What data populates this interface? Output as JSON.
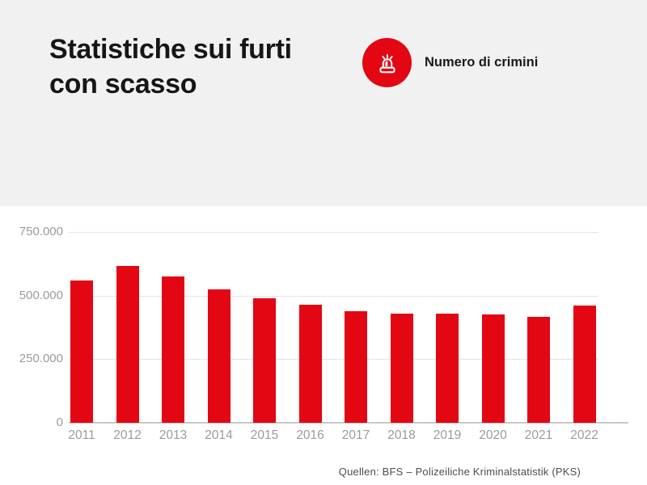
{
  "header": {
    "title_line1": "Statistiche sui furti",
    "title_line2": "con scasso"
  },
  "legend": {
    "icon": "siren-icon",
    "icon_color": "#e30613",
    "label": "Numero di crimini"
  },
  "chart_data": {
    "type": "bar",
    "title": "Statistiche sui furti con scasso",
    "series_label": "Numero di crimini",
    "categories": [
      "2011",
      "2012",
      "2013",
      "2014",
      "2015",
      "2016",
      "2017",
      "2018",
      "2019",
      "2020",
      "2021",
      "2022"
    ],
    "values": [
      560000,
      615000,
      575000,
      525000,
      490000,
      465000,
      440000,
      430000,
      430000,
      425000,
      415000,
      460000
    ],
    "bar_color": "#e30613",
    "xlabel": "",
    "ylabel": "",
    "ylim": [
      0,
      750000
    ],
    "yticks": {
      "values": [
        0,
        250000,
        500000,
        750000
      ],
      "labels": [
        "0",
        "250.000",
        "500.000",
        "750.000"
      ]
    },
    "grid": true,
    "legend_position": "top-right"
  },
  "footer": {
    "source": "Quellen: BFS – Polizeiliche Kriminalstatistik (PKS)"
  }
}
